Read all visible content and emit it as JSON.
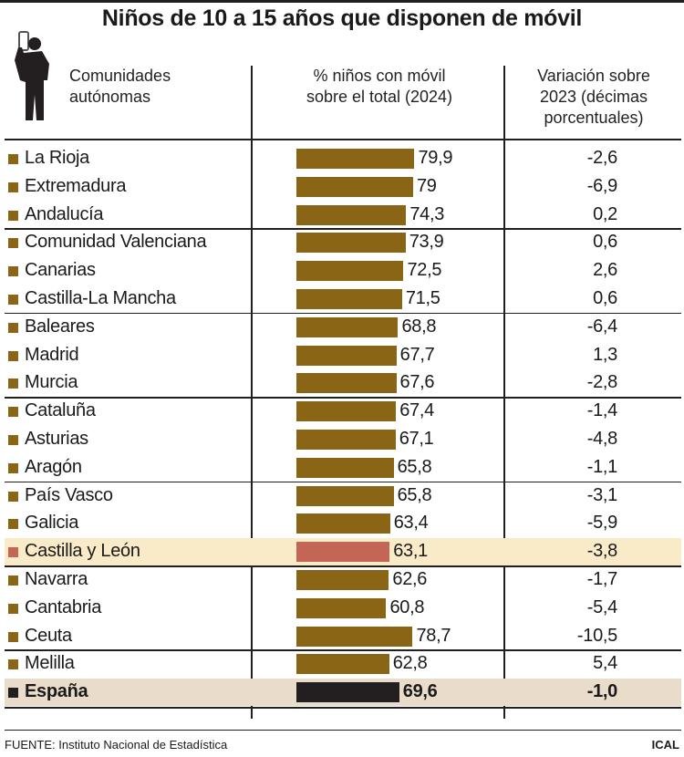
{
  "colors": {
    "bar": "#8a6516",
    "highlight_bar": "#c46655",
    "highlight_bg": "#faebc8",
    "total_bar": "#231f20",
    "total_bg": "#eadccb"
  },
  "chart_data": {
    "type": "table",
    "title": "Niños de 10 a 15 años que disponen de móvil",
    "columns": [
      "Comunidades autónomas",
      "% niños con móvil sobre el total (2024)",
      "Variación sobre 2023 (décimas porcentuales)"
    ],
    "rows": [
      {
        "name": "La Rioja",
        "value": 79.9,
        "value_label": "79,9",
        "change": "-2,6"
      },
      {
        "name": "Extremadura",
        "value": 79,
        "value_label": "79",
        "change": "-6,9"
      },
      {
        "name": "Andalucía",
        "value": 74.3,
        "value_label": "74,3",
        "change": "0,2"
      },
      {
        "name": "Comunidad Valenciana",
        "value": 73.9,
        "value_label": "73,9",
        "change": "0,6"
      },
      {
        "name": "Canarias",
        "value": 72.5,
        "value_label": "72,5",
        "change": "2,6"
      },
      {
        "name": "Castilla-La Mancha",
        "value": 71.5,
        "value_label": "71,5",
        "change": "0,6"
      },
      {
        "name": "Baleares",
        "value": 68.8,
        "value_label": "68,8",
        "change": "-6,4"
      },
      {
        "name": "Madrid",
        "value": 67.7,
        "value_label": "67,7",
        "change": "1,3"
      },
      {
        "name": "Murcia",
        "value": 67.6,
        "value_label": "67,6",
        "change": "-2,8"
      },
      {
        "name": "Cataluña",
        "value": 67.4,
        "value_label": "67,4",
        "change": "-1,4"
      },
      {
        "name": "Asturias",
        "value": 67.1,
        "value_label": "67,1",
        "change": "-4,8"
      },
      {
        "name": "Aragón",
        "value": 65.8,
        "value_label": "65,8",
        "change": "-1,1"
      },
      {
        "name": "País Vasco",
        "value": 65.8,
        "value_label": "65,8",
        "change": "-3,1"
      },
      {
        "name": "Galicia",
        "value": 63.4,
        "value_label": "63,4",
        "change": "-5,9"
      },
      {
        "name": "Castilla y León",
        "value": 63.1,
        "value_label": "63,1",
        "change": "-3,8",
        "highlight": true
      },
      {
        "name": "Navarra",
        "value": 62.6,
        "value_label": "62,6",
        "change": "-1,7"
      },
      {
        "name": "Cantabria",
        "value": 60.8,
        "value_label": "60,8",
        "change": "-5,4"
      },
      {
        "name": "Ceuta",
        "value": 78.7,
        "value_label": "78,7",
        "change": "-10,5"
      },
      {
        "name": "Melilla",
        "value": 62.8,
        "value_label": "62,8",
        "change": "5,4"
      },
      {
        "name": "España",
        "value": 69.6,
        "value_label": "69,6",
        "change": "-1,0",
        "total": true
      }
    ]
  },
  "headers": {
    "col1": [
      "Comunidades",
      "autónomas"
    ],
    "col2": [
      "% niños con móvil",
      "sobre el total (2024)"
    ],
    "col3": [
      "Variación sobre",
      "2023 (décimas",
      "porcentuales)"
    ]
  },
  "footer": {
    "source": "FUENTE: Instituto Nacional de Estadística",
    "brand": "ICAL"
  }
}
